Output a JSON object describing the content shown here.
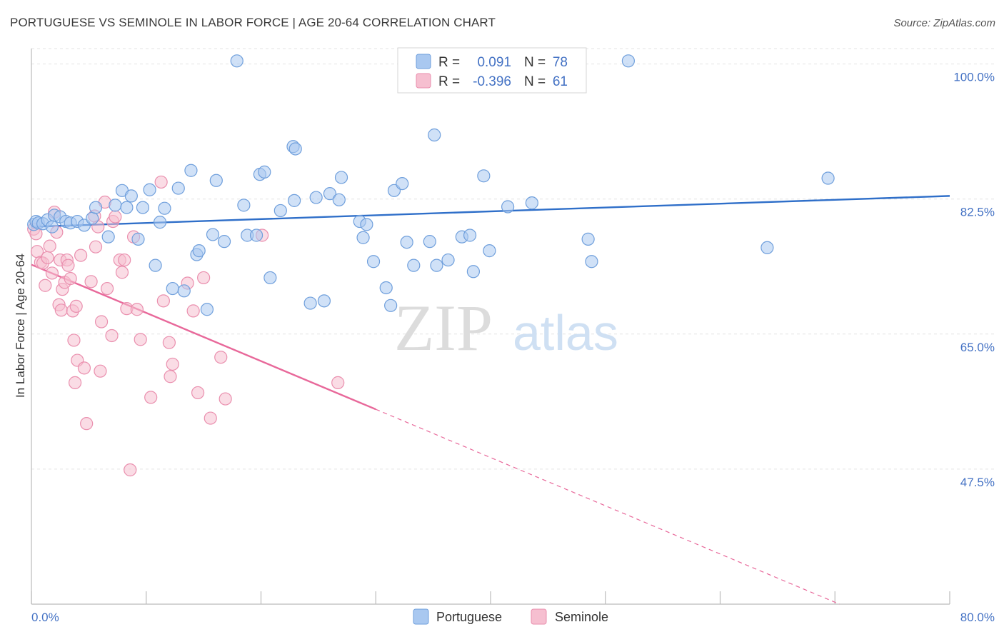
{
  "chart_data": {
    "type": "scatter",
    "title": "PORTUGUESE VS SEMINOLE IN LABOR FORCE | AGE 20-64 CORRELATION CHART",
    "source": "Source: ZipAtlas.com",
    "xlabel": "",
    "ylabel": "In Labor Force | Age 20-64",
    "xlim": [
      0,
      80
    ],
    "ylim": [
      30,
      102
    ],
    "x_tick_labels": [
      "0.0%",
      "80.0%"
    ],
    "y_ticks": [
      100,
      82.5,
      65,
      47.5
    ],
    "y_tick_labels": [
      "100.0%",
      "82.5%",
      "65.0%",
      "47.5%"
    ],
    "watermark": "ZIPatlas",
    "colors": {
      "portuguese_fill": "#a9c8f0",
      "portuguese_stroke": "#6f9fdc",
      "portuguese_line": "#2f6fc9",
      "seminole_fill": "#f6bfd0",
      "seminole_stroke": "#ea8fae",
      "seminole_line": "#e8689a",
      "accent_text": "#4472c4"
    },
    "legend": {
      "r_label": "R =",
      "n_label": "N =",
      "rows": [
        {
          "name": "Portuguese",
          "r": "0.091",
          "n": "78"
        },
        {
          "name": "Seminole",
          "r": "-0.396",
          "n": "61"
        }
      ]
    },
    "series": [
      {
        "name": "Portuguese",
        "trend": {
          "x0": 0,
          "y0": 78.9,
          "x1": 80,
          "y1": 82.9,
          "solid_until": 80
        },
        "points": [
          [
            0.2,
            79.2
          ],
          [
            0.4,
            79.6
          ],
          [
            0.6,
            79.4
          ],
          [
            1.0,
            79.3
          ],
          [
            1.4,
            79.8
          ],
          [
            1.8,
            78.9
          ],
          [
            2.0,
            80.4
          ],
          [
            2.5,
            80.2
          ],
          [
            3.0,
            79.6
          ],
          [
            3.4,
            79.4
          ],
          [
            4.0,
            79.6
          ],
          [
            4.6,
            79.1
          ],
          [
            5.3,
            80.0
          ],
          [
            5.6,
            81.4
          ],
          [
            6.7,
            77.6
          ],
          [
            7.3,
            81.7
          ],
          [
            7.9,
            83.6
          ],
          [
            8.3,
            81.4
          ],
          [
            8.7,
            82.9
          ],
          [
            9.3,
            77.3
          ],
          [
            9.7,
            81.4
          ],
          [
            10.3,
            83.7
          ],
          [
            10.8,
            73.9
          ],
          [
            11.2,
            79.5
          ],
          [
            11.6,
            81.3
          ],
          [
            12.3,
            70.9
          ],
          [
            12.8,
            83.9
          ],
          [
            13.3,
            70.6
          ],
          [
            13.9,
            86.2
          ],
          [
            14.4,
            75.3
          ],
          [
            14.6,
            75.8
          ],
          [
            15.3,
            68.2
          ],
          [
            15.8,
            77.9
          ],
          [
            16.1,
            84.9
          ],
          [
            16.8,
            77.0
          ],
          [
            17.9,
            100.4
          ],
          [
            18.5,
            81.7
          ],
          [
            18.8,
            77.8
          ],
          [
            19.6,
            77.8
          ],
          [
            19.9,
            85.7
          ],
          [
            20.3,
            86.0
          ],
          [
            20.8,
            72.3
          ],
          [
            21.7,
            81.0
          ],
          [
            22.8,
            89.3
          ],
          [
            22.9,
            82.3
          ],
          [
            23.0,
            89.0
          ],
          [
            24.3,
            69.0
          ],
          [
            24.8,
            82.7
          ],
          [
            25.5,
            69.3
          ],
          [
            26.0,
            83.2
          ],
          [
            26.8,
            82.4
          ],
          [
            27.0,
            85.3
          ],
          [
            28.6,
            79.6
          ],
          [
            28.9,
            77.5
          ],
          [
            29.2,
            79.2
          ],
          [
            29.8,
            74.4
          ],
          [
            30.9,
            71.0
          ],
          [
            31.3,
            68.7
          ],
          [
            31.6,
            83.6
          ],
          [
            32.3,
            84.5
          ],
          [
            32.7,
            76.9
          ],
          [
            33.3,
            73.9
          ],
          [
            34.7,
            77.0
          ],
          [
            35.1,
            90.8
          ],
          [
            35.3,
            73.9
          ],
          [
            36.3,
            74.6
          ],
          [
            37.5,
            77.6
          ],
          [
            38.2,
            77.8
          ],
          [
            38.5,
            73.1
          ],
          [
            39.4,
            85.5
          ],
          [
            39.9,
            75.8
          ],
          [
            41.5,
            81.5
          ],
          [
            43.6,
            82.0
          ],
          [
            48.5,
            77.3
          ],
          [
            48.8,
            74.4
          ],
          [
            52.0,
            100.4
          ],
          [
            64.1,
            76.2
          ],
          [
            69.4,
            85.2
          ]
        ]
      },
      {
        "name": "Seminole",
        "trend": {
          "x0": 0,
          "y0": 74.0,
          "x1": 80,
          "y1": 24.0,
          "solid_until": 30
        },
        "points": [
          [
            0.2,
            78.6
          ],
          [
            0.4,
            78.0
          ],
          [
            0.5,
            75.7
          ],
          [
            0.8,
            74.3
          ],
          [
            1.0,
            74.2
          ],
          [
            1.2,
            71.3
          ],
          [
            1.4,
            74.9
          ],
          [
            1.6,
            76.4
          ],
          [
            1.8,
            72.9
          ],
          [
            2.0,
            80.8
          ],
          [
            2.2,
            78.2
          ],
          [
            2.4,
            68.8
          ],
          [
            2.5,
            74.6
          ],
          [
            2.6,
            68.1
          ],
          [
            2.7,
            70.8
          ],
          [
            2.9,
            71.7
          ],
          [
            3.1,
            74.6
          ],
          [
            3.2,
            73.9
          ],
          [
            3.4,
            72.2
          ],
          [
            3.6,
            68.0
          ],
          [
            3.7,
            64.2
          ],
          [
            3.8,
            58.7
          ],
          [
            3.9,
            68.6
          ],
          [
            4.0,
            61.6
          ],
          [
            4.3,
            75.2
          ],
          [
            4.6,
            60.6
          ],
          [
            4.8,
            53.4
          ],
          [
            5.2,
            71.8
          ],
          [
            5.5,
            80.3
          ],
          [
            5.6,
            76.3
          ],
          [
            5.8,
            78.9
          ],
          [
            6.0,
            60.2
          ],
          [
            6.1,
            66.6
          ],
          [
            6.4,
            82.1
          ],
          [
            6.6,
            70.9
          ],
          [
            7.0,
            64.8
          ],
          [
            7.1,
            79.6
          ],
          [
            7.3,
            80.2
          ],
          [
            7.7,
            74.6
          ],
          [
            7.9,
            73.0
          ],
          [
            8.1,
            74.6
          ],
          [
            8.3,
            68.3
          ],
          [
            8.6,
            47.4
          ],
          [
            8.9,
            77.6
          ],
          [
            9.2,
            68.2
          ],
          [
            9.5,
            64.3
          ],
          [
            10.4,
            56.8
          ],
          [
            11.3,
            84.7
          ],
          [
            11.5,
            69.3
          ],
          [
            12.0,
            63.9
          ],
          [
            12.1,
            59.5
          ],
          [
            12.3,
            61.1
          ],
          [
            13.6,
            71.6
          ],
          [
            14.1,
            68.0
          ],
          [
            14.5,
            57.4
          ],
          [
            15.0,
            72.3
          ],
          [
            15.6,
            54.1
          ],
          [
            16.5,
            62.0
          ],
          [
            16.9,
            56.6
          ],
          [
            20.1,
            77.8
          ],
          [
            26.7,
            58.7
          ]
        ]
      }
    ]
  },
  "bottom_legend": [
    {
      "name": "Portuguese"
    },
    {
      "name": "Seminole"
    }
  ]
}
